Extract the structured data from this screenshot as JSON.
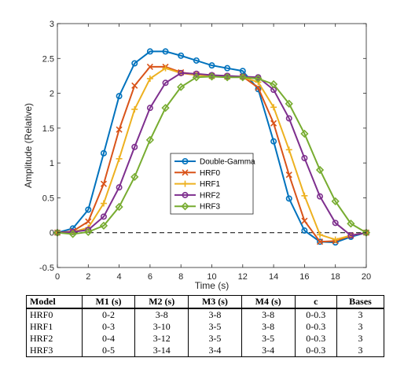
{
  "chart_data": {
    "type": "line",
    "title": "",
    "xlabel": "Time (s)",
    "ylabel": "Amplitude (Relative)",
    "xlim": [
      0,
      20
    ],
    "ylim": [
      -0.5,
      3
    ],
    "xticks": [
      "0",
      "2",
      "4",
      "6",
      "8",
      "10",
      "12",
      "14",
      "16",
      "18",
      "20"
    ],
    "yticks": [
      "-0.5",
      "0",
      "0.5",
      "1",
      "1.5",
      "2",
      "2.5",
      "3"
    ],
    "grid": false,
    "legend_position": "center",
    "baseline": 0,
    "x": [
      0,
      1,
      2,
      3,
      4,
      5,
      6,
      7,
      8,
      9,
      10,
      11,
      12,
      13,
      14,
      15,
      16,
      17,
      18,
      19,
      20
    ],
    "series": [
      {
        "name": "Double-Gamma",
        "color": "#0072BD",
        "marker": "circle",
        "values": [
          0,
          0.06,
          0.33,
          1.14,
          1.96,
          2.43,
          2.6,
          2.6,
          2.54,
          2.47,
          2.4,
          2.36,
          2.32,
          2.06,
          1.31,
          0.49,
          0.03,
          -0.13,
          -0.14,
          -0.06,
          0
        ]
      },
      {
        "name": "HRF0",
        "color": "#D95319",
        "marker": "x",
        "values": [
          0,
          0.02,
          0.16,
          0.7,
          1.48,
          2.11,
          2.38,
          2.38,
          2.3,
          2.27,
          2.25,
          2.24,
          2.24,
          2.08,
          1.57,
          0.83,
          0.17,
          -0.13,
          -0.12,
          -0.04,
          0
        ]
      },
      {
        "name": "HRF1",
        "color": "#EDB120",
        "marker": "plus",
        "values": [
          0,
          0.01,
          0.07,
          0.42,
          1.06,
          1.77,
          2.21,
          2.36,
          2.29,
          2.26,
          2.25,
          2.24,
          2.23,
          2.16,
          1.8,
          1.19,
          0.53,
          -0.03,
          -0.1,
          -0.04,
          0
        ]
      },
      {
        "name": "HRF2",
        "color": "#7E2F8E",
        "marker": "circle",
        "values": [
          0,
          0.01,
          0.04,
          0.23,
          0.65,
          1.23,
          1.79,
          2.15,
          2.29,
          2.28,
          2.26,
          2.25,
          2.24,
          2.23,
          2.05,
          1.64,
          1.07,
          0.52,
          0.14,
          -0.04,
          0
        ]
      },
      {
        "name": "HRF3",
        "color": "#77AC30",
        "marker": "diamond",
        "values": [
          0,
          -0.02,
          0.01,
          0.1,
          0.37,
          0.8,
          1.33,
          1.79,
          2.09,
          2.23,
          2.24,
          2.23,
          2.23,
          2.21,
          2.13,
          1.85,
          1.42,
          0.9,
          0.45,
          0.13,
          0
        ]
      }
    ]
  },
  "table": {
    "headers": [
      "Model",
      "M1 (s)",
      "M2 (s)",
      "M3 (s)",
      "M4 (s)",
      "c",
      "Bases"
    ],
    "rows": [
      [
        "HRF0",
        "0-2",
        "3-8",
        "3-8",
        "3-8",
        "0-0.3",
        "3"
      ],
      [
        "HRF1",
        "0-3",
        "3-10",
        "3-5",
        "3-8",
        "0-0.3",
        "3"
      ],
      [
        "HRF2",
        "0-4",
        "3-12",
        "3-5",
        "3-5",
        "0-0.3",
        "3"
      ],
      [
        "HRF3",
        "0-5",
        "3-14",
        "3-4",
        "3-4",
        "0-0.3",
        "3"
      ]
    ]
  }
}
